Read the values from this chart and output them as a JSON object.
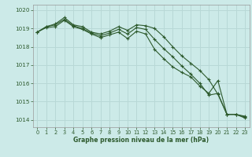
{
  "xlabel": "Graphe pression niveau de la mer (hPa)",
  "bg_color": "#cceae8",
  "grid_color": "#b8d8d6",
  "line_color": "#2d5a2d",
  "ylim": [
    1013.6,
    1020.3
  ],
  "xlim": [
    -0.5,
    23.5
  ],
  "yticks": [
    1014,
    1015,
    1016,
    1017,
    1018,
    1019,
    1020
  ],
  "xticks": [
    0,
    1,
    2,
    3,
    4,
    5,
    6,
    7,
    8,
    9,
    10,
    11,
    12,
    13,
    14,
    15,
    16,
    17,
    18,
    19,
    20,
    21,
    22,
    23
  ],
  "series": [
    [
      1018.8,
      1019.1,
      1019.25,
      1019.6,
      1019.2,
      1019.1,
      1018.8,
      1018.7,
      1018.85,
      1019.1,
      1018.9,
      1019.2,
      1019.15,
      1019.0,
      1018.55,
      1018.0,
      1017.5,
      1017.1,
      1016.7,
      1016.2,
      1015.4,
      1014.3,
      1014.3,
      1014.15
    ],
    [
      1018.8,
      1019.1,
      1019.2,
      1019.5,
      1019.15,
      1019.0,
      1018.75,
      1018.6,
      1018.75,
      1018.95,
      1018.7,
      1019.05,
      1018.95,
      1018.4,
      1017.9,
      1017.45,
      1016.95,
      1016.5,
      1016.0,
      1015.35,
      1015.45,
      1014.3,
      1014.3,
      1014.2
    ],
    [
      1018.8,
      1019.05,
      1019.1,
      1019.45,
      1019.1,
      1018.95,
      1018.7,
      1018.5,
      1018.65,
      1018.8,
      1018.45,
      1018.85,
      1018.7,
      1017.85,
      1017.35,
      1016.9,
      1016.6,
      1016.35,
      1015.85,
      1015.45,
      1016.15,
      1014.3,
      1014.3,
      1014.1
    ]
  ]
}
